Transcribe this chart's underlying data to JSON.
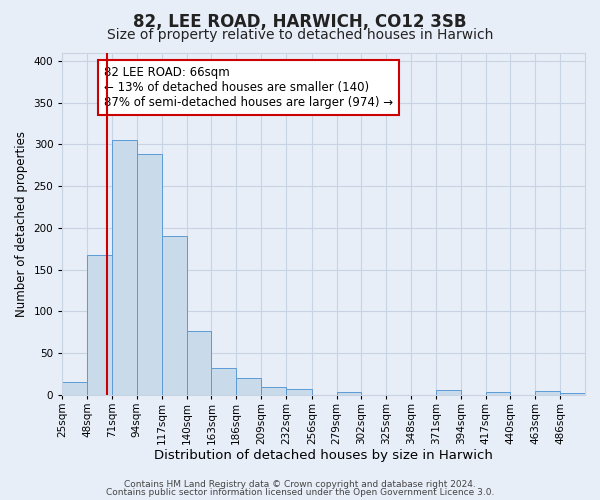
{
  "title": "82, LEE ROAD, HARWICH, CO12 3SB",
  "subtitle": "Size of property relative to detached houses in Harwich",
  "xlabel": "Distribution of detached houses by size in Harwich",
  "ylabel": "Number of detached properties",
  "bar_labels": [
    "25sqm",
    "48sqm",
    "71sqm",
    "94sqm",
    "117sqm",
    "140sqm",
    "163sqm",
    "186sqm",
    "209sqm",
    "232sqm",
    "256sqm",
    "279sqm",
    "302sqm",
    "325sqm",
    "348sqm",
    "371sqm",
    "394sqm",
    "417sqm",
    "440sqm",
    "463sqm",
    "486sqm"
  ],
  "bar_values": [
    16,
    168,
    305,
    288,
    190,
    77,
    32,
    20,
    10,
    7,
    0,
    3,
    0,
    0,
    0,
    6,
    0,
    3,
    0,
    5,
    2
  ],
  "bin_edges": [
    25,
    48,
    71,
    94,
    117,
    140,
    163,
    186,
    209,
    232,
    256,
    279,
    302,
    325,
    348,
    371,
    394,
    417,
    440,
    463,
    486,
    509
  ],
  "ylim": [
    0,
    410
  ],
  "yticks": [
    0,
    50,
    100,
    150,
    200,
    250,
    300,
    350,
    400
  ],
  "bar_color": "#c9daea",
  "bar_edge_color": "#5b9bd5",
  "vline_x": 66,
  "vline_color": "#cc0000",
  "annotation_text_line1": "82 LEE ROAD: 66sqm",
  "annotation_text_line2": "← 13% of detached houses are smaller (140)",
  "annotation_text_line3": "87% of semi-detached houses are larger (974) →",
  "annotation_box_color": "#ffffff",
  "annotation_box_edge": "#cc0000",
  "grid_color": "#c8d4e4",
  "background_color": "#e8eef8",
  "footer_line1": "Contains HM Land Registry data © Crown copyright and database right 2024.",
  "footer_line2": "Contains public sector information licensed under the Open Government Licence 3.0.",
  "title_fontsize": 12,
  "subtitle_fontsize": 10,
  "xlabel_fontsize": 9.5,
  "ylabel_fontsize": 8.5,
  "tick_fontsize": 7.5,
  "footer_fontsize": 6.5,
  "annotation_fontsize": 8.5
}
